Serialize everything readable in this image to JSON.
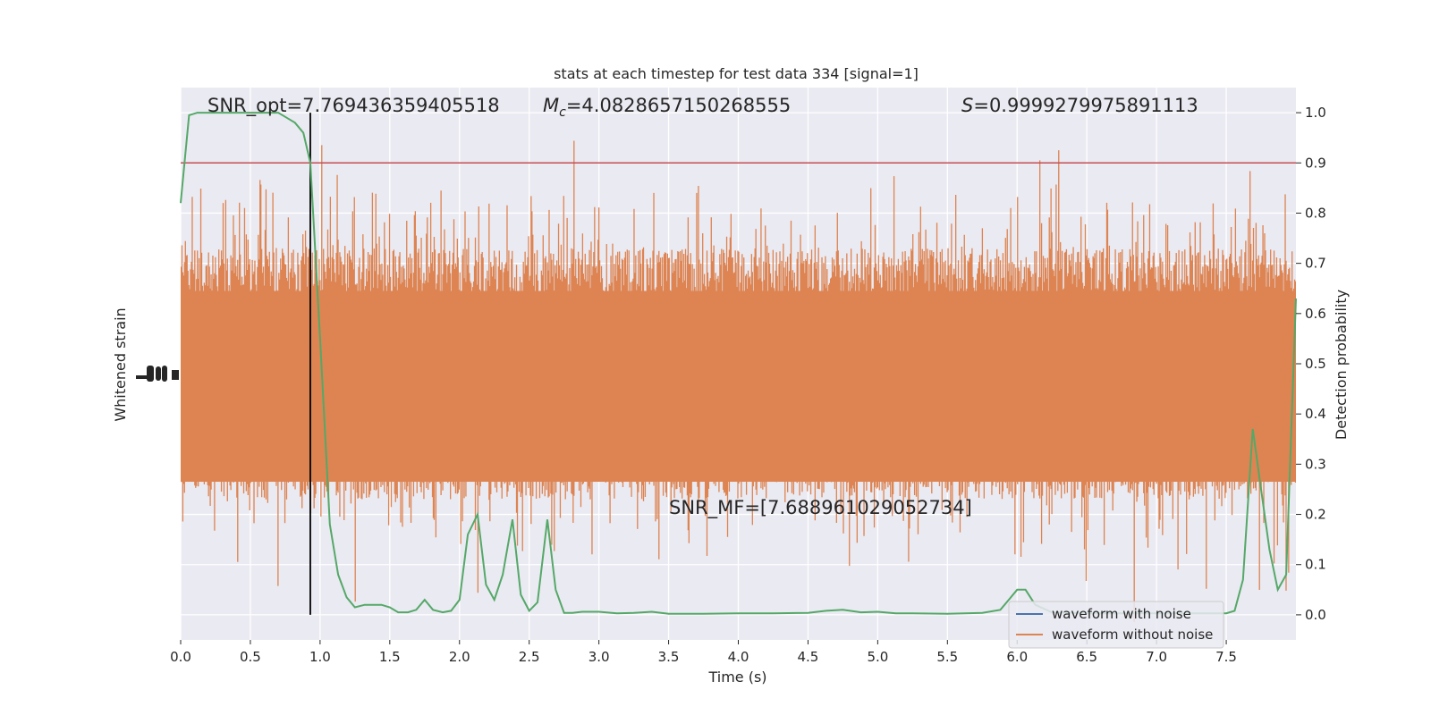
{
  "chart_data": {
    "type": "line",
    "title": "stats at each timestep for test data 334 [signal=1]",
    "xlabel": "Time (s)",
    "ylabel_left": "Whitened strain",
    "ylabel_right": "Detection probability",
    "xlim": [
      0,
      8
    ],
    "ylim_right": [
      -0.05,
      1.05
    ],
    "x_ticks": [
      0.0,
      0.5,
      1.0,
      1.5,
      2.0,
      2.5,
      3.0,
      3.5,
      4.0,
      4.5,
      5.0,
      5.5,
      6.0,
      6.5,
      7.0,
      7.5
    ],
    "x_tick_labels": [
      "0.0",
      "0.5",
      "1.0",
      "1.5",
      "2.0",
      "2.5",
      "3.0",
      "3.5",
      "4.0",
      "4.5",
      "5.0",
      "5.5",
      "6.0",
      "6.5",
      "7.0",
      "7.5"
    ],
    "y_right_ticks": [
      0.0,
      0.1,
      0.2,
      0.3,
      0.4,
      0.5,
      0.6,
      0.7,
      0.8,
      0.9,
      1.0
    ],
    "y_right_tick_labels": [
      "0.0",
      "0.1",
      "0.2",
      "0.3",
      "0.4",
      "0.5",
      "0.6",
      "0.7",
      "0.8",
      "0.9",
      "1.0"
    ],
    "grid": true,
    "threshold": 0.9,
    "detection_time": 0.93,
    "annotations": {
      "snr_opt": "SNR_opt=7.769436359405518",
      "mc_symbol": "M",
      "mc_sub": "c",
      "mc_value": "=4.0828657150268555",
      "s_symbol": "S",
      "s_value": "=0.9999279975891113",
      "snr_mf": "SNR_MF=[7.688961029052734]"
    },
    "legend": {
      "position": "lower-right",
      "entries": [
        {
          "label": "waveform with noise",
          "color": "#4c72b0"
        },
        {
          "label": "waveform without noise",
          "color": "#dd8452"
        }
      ]
    },
    "detection_probability": {
      "x": [
        0.0,
        0.06,
        0.12,
        0.25,
        0.5,
        0.7,
        0.76,
        0.82,
        0.88,
        0.93,
        1.0,
        1.07,
        1.13,
        1.19,
        1.25,
        1.32,
        1.44,
        1.5,
        1.56,
        1.63,
        1.69,
        1.75,
        1.81,
        1.88,
        1.94,
        2.0,
        2.06,
        2.13,
        2.19,
        2.25,
        2.31,
        2.38,
        2.44,
        2.5,
        2.56,
        2.63,
        2.69,
        2.75,
        2.81,
        2.88,
        3.0,
        3.13,
        3.25,
        3.38,
        3.5,
        3.75,
        4.0,
        4.25,
        4.5,
        4.63,
        4.75,
        4.88,
        5.0,
        5.13,
        5.25,
        5.5,
        5.75,
        5.88,
        5.94,
        6.0,
        6.06,
        6.13,
        6.25,
        6.5,
        6.75,
        7.0,
        7.25,
        7.5,
        7.56,
        7.62,
        7.69,
        7.75,
        7.81,
        7.87,
        7.93,
        8.0
      ],
      "y": [
        0.82,
        0.995,
        1.0,
        1.0,
        1.0,
        1.0,
        0.99,
        0.98,
        0.96,
        0.9,
        0.55,
        0.18,
        0.08,
        0.035,
        0.015,
        0.02,
        0.02,
        0.015,
        0.005,
        0.005,
        0.01,
        0.03,
        0.01,
        0.005,
        0.008,
        0.03,
        0.16,
        0.2,
        0.06,
        0.03,
        0.08,
        0.19,
        0.04,
        0.008,
        0.025,
        0.19,
        0.05,
        0.004,
        0.004,
        0.006,
        0.006,
        0.003,
        0.004,
        0.006,
        0.002,
        0.002,
        0.003,
        0.003,
        0.004,
        0.008,
        0.01,
        0.005,
        0.006,
        0.003,
        0.003,
        0.002,
        0.004,
        0.01,
        0.03,
        0.05,
        0.05,
        0.02,
        0.005,
        0.003,
        0.003,
        0.003,
        0.003,
        0.003,
        0.008,
        0.07,
        0.37,
        0.25,
        0.13,
        0.05,
        0.08,
        0.63
      ]
    }
  }
}
